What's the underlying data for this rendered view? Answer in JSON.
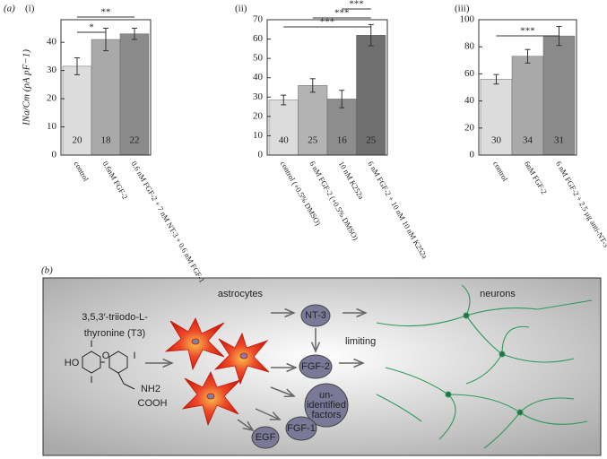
{
  "figure": {
    "label_a": "(a)"
  },
  "chart_data": [
    {
      "type": "bar",
      "title": "(i)",
      "y_label": "INa/Cm (pA pF−1)",
      "categories": [
        "control",
        "0.6nM FGF-2",
        "0.6 nM FGF-2 + 7 nM NT-3 + 0.6 nM FGF-1"
      ],
      "values": [
        31.5,
        41,
        43
      ],
      "errors": [
        3,
        4,
        2
      ],
      "counts": [
        20,
        18,
        22
      ],
      "colors": [
        "#dcdcdc",
        "#a9a9a9",
        "#8a8a8a"
      ],
      "ylim": [
        0,
        48
      ],
      "yticks": [
        0,
        10,
        20,
        30,
        40
      ],
      "brackets": [
        {
          "from": 0,
          "to": 1,
          "label": "*"
        },
        {
          "from": 0,
          "to": 2,
          "label": "**"
        }
      ]
    },
    {
      "type": "bar",
      "title": "(ii)",
      "categories": [
        "control (+0.5% DMSO)",
        "6 nM FGF-2 (+0.5% DMSO)",
        "10 nM K252a",
        "6 nM FGF-2 + 10 nM 10 nM K252a"
      ],
      "values": [
        28.5,
        36,
        29,
        62
      ],
      "errors": [
        2.5,
        3.5,
        4.5,
        5.5
      ],
      "counts": [
        40,
        25,
        16,
        25
      ],
      "colors": [
        "#dcdcdc",
        "#b3b3b3",
        "#8d8d8d",
        "#6f6f6f"
      ],
      "ylim": [
        0,
        70
      ],
      "yticks": [
        0,
        10,
        20,
        30,
        40,
        50,
        60,
        70
      ],
      "brackets": [
        {
          "from": 0,
          "to": 3,
          "label": "***"
        },
        {
          "from": 1,
          "to": 3,
          "label": "***"
        },
        {
          "from": 2,
          "to": 3,
          "label": "***"
        }
      ]
    },
    {
      "type": "bar",
      "title": "(iii)",
      "categories": [
        "control",
        "6nM FGF-2",
        "6 nM FGF-2 + 2.5 µg anti-NT-3"
      ],
      "values": [
        56,
        73,
        88
      ],
      "errors": [
        3.5,
        5,
        7
      ],
      "counts": [
        30,
        34,
        31
      ],
      "colors": [
        "#dcdcdc",
        "#a9a9a9",
        "#8a8a8a"
      ],
      "ylim": [
        0,
        100
      ],
      "yticks": [
        0,
        20,
        40,
        60,
        80,
        100
      ],
      "brackets": [
        {
          "from": 0,
          "to": 2,
          "label": "***"
        }
      ]
    }
  ],
  "diagram": {
    "label": "(b)",
    "astrocytes": "astrocytes",
    "neurons": "neurons",
    "t3": [
      "3,5,3′-triiodo-L-",
      "thyronine (T3)"
    ],
    "limiting": "limiting",
    "nt3": "NT-3",
    "fgf2": "FGF-2",
    "unidentified": [
      "un-",
      "identified",
      "factors"
    ],
    "fgf1": "FGF-1",
    "egf": "EGF",
    "structure": [
      "I",
      "HO",
      "O",
      "I",
      "I",
      "NH2",
      "COOH"
    ]
  }
}
